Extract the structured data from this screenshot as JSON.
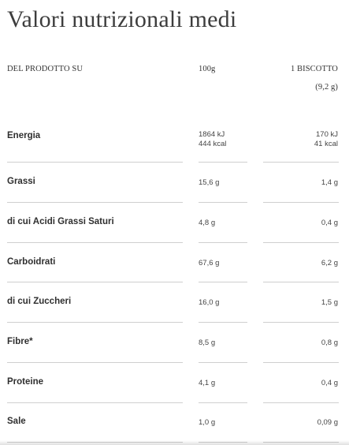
{
  "title": "Valori nutrizionali medi",
  "header": {
    "label": "DEL PRODOTTO SU",
    "col_100g": "100g",
    "col_biscotto_line1": "1 BISCOTTO",
    "col_biscotto_line2": "(9,2 g)"
  },
  "rows": [
    {
      "label": "Energia",
      "v100_line1": "1864 kJ",
      "v100_line2": "444 kcal",
      "vbis_line1": "170 kJ",
      "vbis_line2": "41 kcal"
    },
    {
      "label": "Grassi",
      "v100_line1": "15,6 g",
      "vbis_line1": "1,4 g"
    },
    {
      "label": "di cui Acidi Grassi Saturi",
      "v100_line1": "4,8 g",
      "vbis_line1": "0,4 g"
    },
    {
      "label": "Carboidrati",
      "v100_line1": "67,6 g",
      "vbis_line1": "6,2 g"
    },
    {
      "label": "di cui Zuccheri",
      "v100_line1": "16,0 g",
      "vbis_line1": "1,5 g"
    },
    {
      "label": "Fibre*",
      "v100_line1": "8,5 g",
      "vbis_line1": "0,8 g"
    },
    {
      "label": "Proteine",
      "v100_line1": "4,1 g",
      "vbis_line1": "0,4 g"
    },
    {
      "label": "Sale",
      "v100_line1": "1,0 g",
      "vbis_line1": "0,09 g"
    }
  ]
}
